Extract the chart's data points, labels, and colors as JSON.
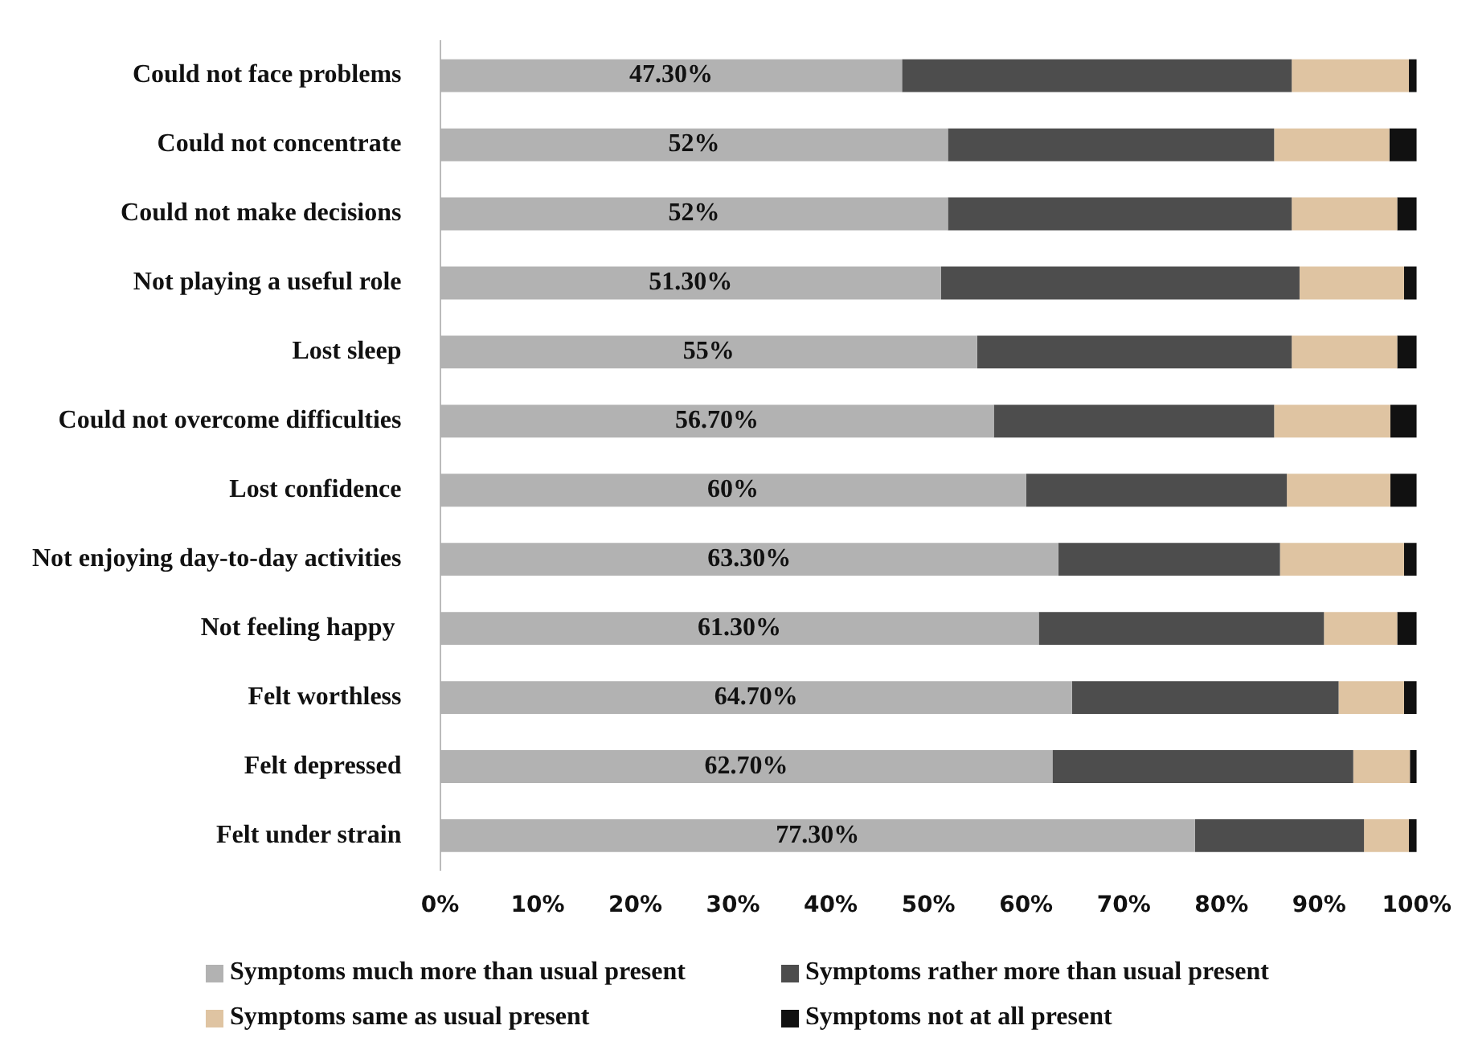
{
  "chart_data": {
    "type": "bar",
    "orientation": "horizontal",
    "stacked": true,
    "categories": [
      "Could not face problems",
      "Could not concentrate",
      "Could not make decisions",
      "Not playing a useful role",
      "Lost sleep",
      "Could not overcome difficulties",
      "Lost confidence",
      "Not enjoying day-to-day activities",
      "Not feeling happy ",
      "Felt worthless",
      "Felt depressed",
      "Felt under strain"
    ],
    "series": [
      {
        "name": "Symptoms much more than usual present",
        "color": "#b2b2b2",
        "values": [
          47.3,
          52,
          52,
          51.3,
          55,
          56.7,
          60,
          63.3,
          61.3,
          64.7,
          62.7,
          77.3
        ],
        "value_labels": [
          "47.30%",
          "52%",
          "52%",
          "51.30%",
          "55%",
          "56.70%",
          "60%",
          "63.30%",
          "61.30%",
          "64.70%",
          "62.70%",
          "77.30%"
        ]
      },
      {
        "name": "Symptoms rather more than usual present",
        "color": "#4d4d4d",
        "values": [
          39.9,
          33.4,
          35.2,
          36.7,
          32.2,
          28.7,
          26.7,
          22.7,
          29.2,
          27.3,
          30.8,
          17.3
        ]
      },
      {
        "name": "Symptoms same as usual present",
        "color": "#dfc4a2",
        "values": [
          12,
          11.8,
          10.8,
          10.7,
          10.8,
          11.9,
          10.6,
          12.7,
          7.5,
          6.7,
          5.8,
          4.6
        ]
      },
      {
        "name": "Symptoms not at all present",
        "color": "#111111",
        "values": [
          0.8,
          2.8,
          2,
          1.3,
          2,
          2.7,
          2.7,
          1.3,
          2,
          1.3,
          0.7,
          0.8
        ]
      }
    ],
    "xlim": [
      0,
      100
    ],
    "xticks": [
      {
        "value": 0,
        "label": "0%"
      },
      {
        "value": 10,
        "label": "10%"
      },
      {
        "value": 20,
        "label": "20%"
      },
      {
        "value": 30,
        "label": "30%"
      },
      {
        "value": 40,
        "label": "40%"
      },
      {
        "value": 50,
        "label": "50%"
      },
      {
        "value": 60,
        "label": "60%"
      },
      {
        "value": 70,
        "label": "70%"
      },
      {
        "value": 80,
        "label": "80%"
      },
      {
        "value": 90,
        "label": "90%"
      },
      {
        "value": 100,
        "label": "100%"
      }
    ],
    "grid": false,
    "legend": "bottom"
  }
}
